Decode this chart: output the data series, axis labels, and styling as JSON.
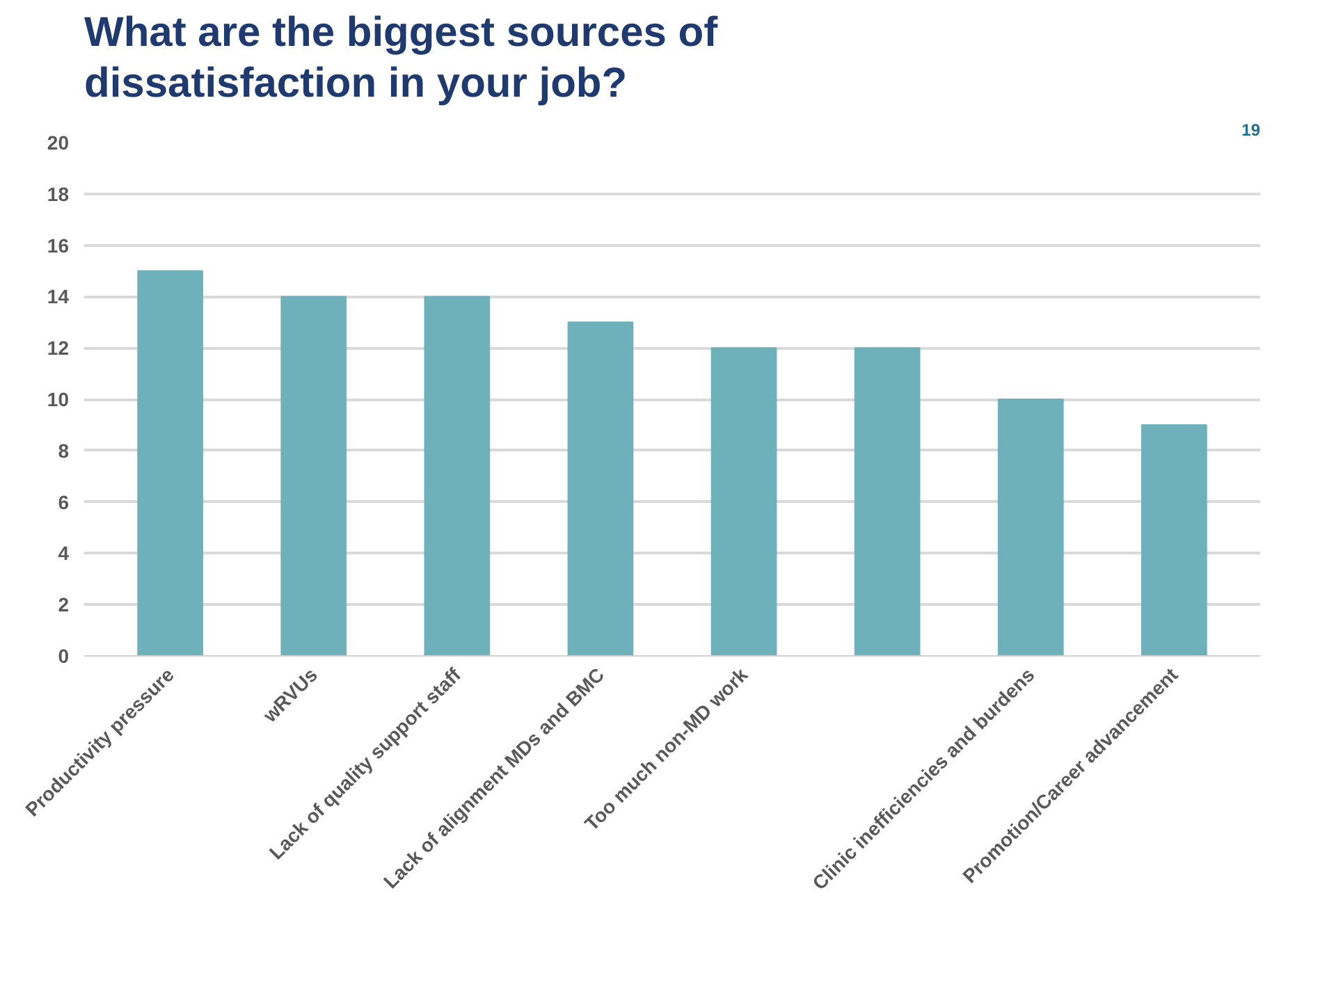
{
  "chart_data": {
    "type": "bar",
    "title": "What are the biggest sources of\ndissatisfaction in your job?",
    "categories": [
      "Productivity pressure",
      "wRVUs",
      "Lack of quality support staff",
      "Lack of alignment MDs and BMC",
      "Too much non-MD work",
      null,
      "Clinic inefficiencies and burdens",
      "Promotion/Career advancement"
    ],
    "values": [
      15,
      14,
      14,
      13,
      12,
      12,
      10,
      9
    ],
    "color": "#6eb1bb",
    "ylim": [
      0,
      20
    ],
    "yticks": [
      0,
      2,
      4,
      6,
      8,
      10,
      12,
      14,
      16,
      18,
      20
    ],
    "grid": "y",
    "annotations": [
      "19"
    ]
  }
}
